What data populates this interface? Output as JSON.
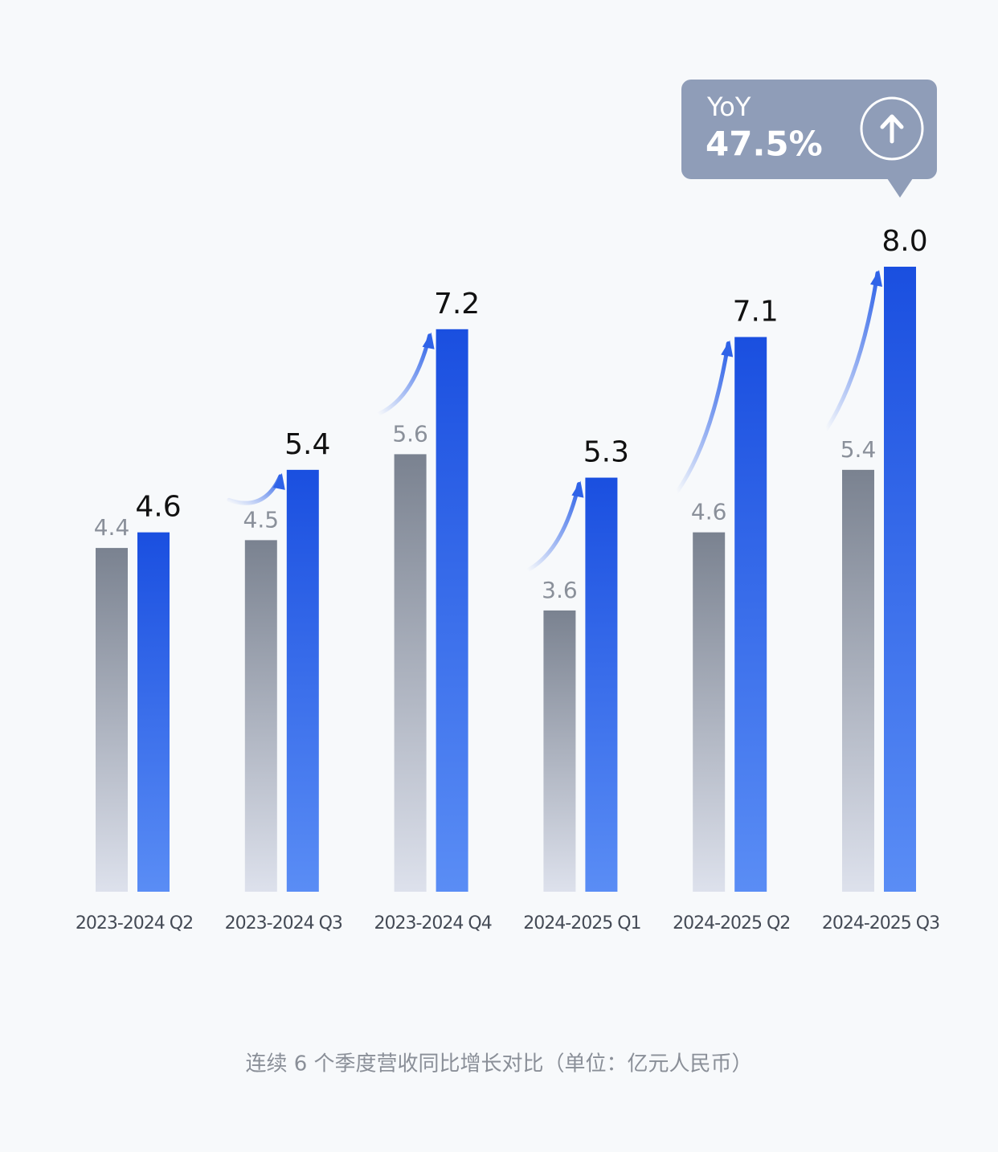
{
  "chart_data": {
    "type": "bar",
    "caption": "连续 6 个季度营收同比增长对比（单位：亿元人民币）",
    "categories": [
      "2023-2024 Q2",
      "2023-2024 Q3",
      "2023-2024 Q4",
      "2024-2025 Q1",
      "2024-2025 Q2",
      "2024-2025 Q3"
    ],
    "series": [
      {
        "color": "#7a8290",
        "values": [
          4.4,
          4.5,
          5.6,
          3.6,
          4.6,
          5.4
        ],
        "value_labels": [
          "4.4",
          "4.5",
          "5.6",
          "3.6",
          "4.6",
          "5.4"
        ]
      },
      {
        "color": "#1a4fe0",
        "values": [
          4.6,
          5.4,
          7.2,
          5.3,
          7.1,
          8.0
        ],
        "value_labels": [
          "4.6",
          "5.4",
          "7.2",
          "5.3",
          "7.1",
          "8.0"
        ]
      }
    ],
    "annotation": {
      "label": "YoY",
      "value": "47.5%"
    }
  }
}
